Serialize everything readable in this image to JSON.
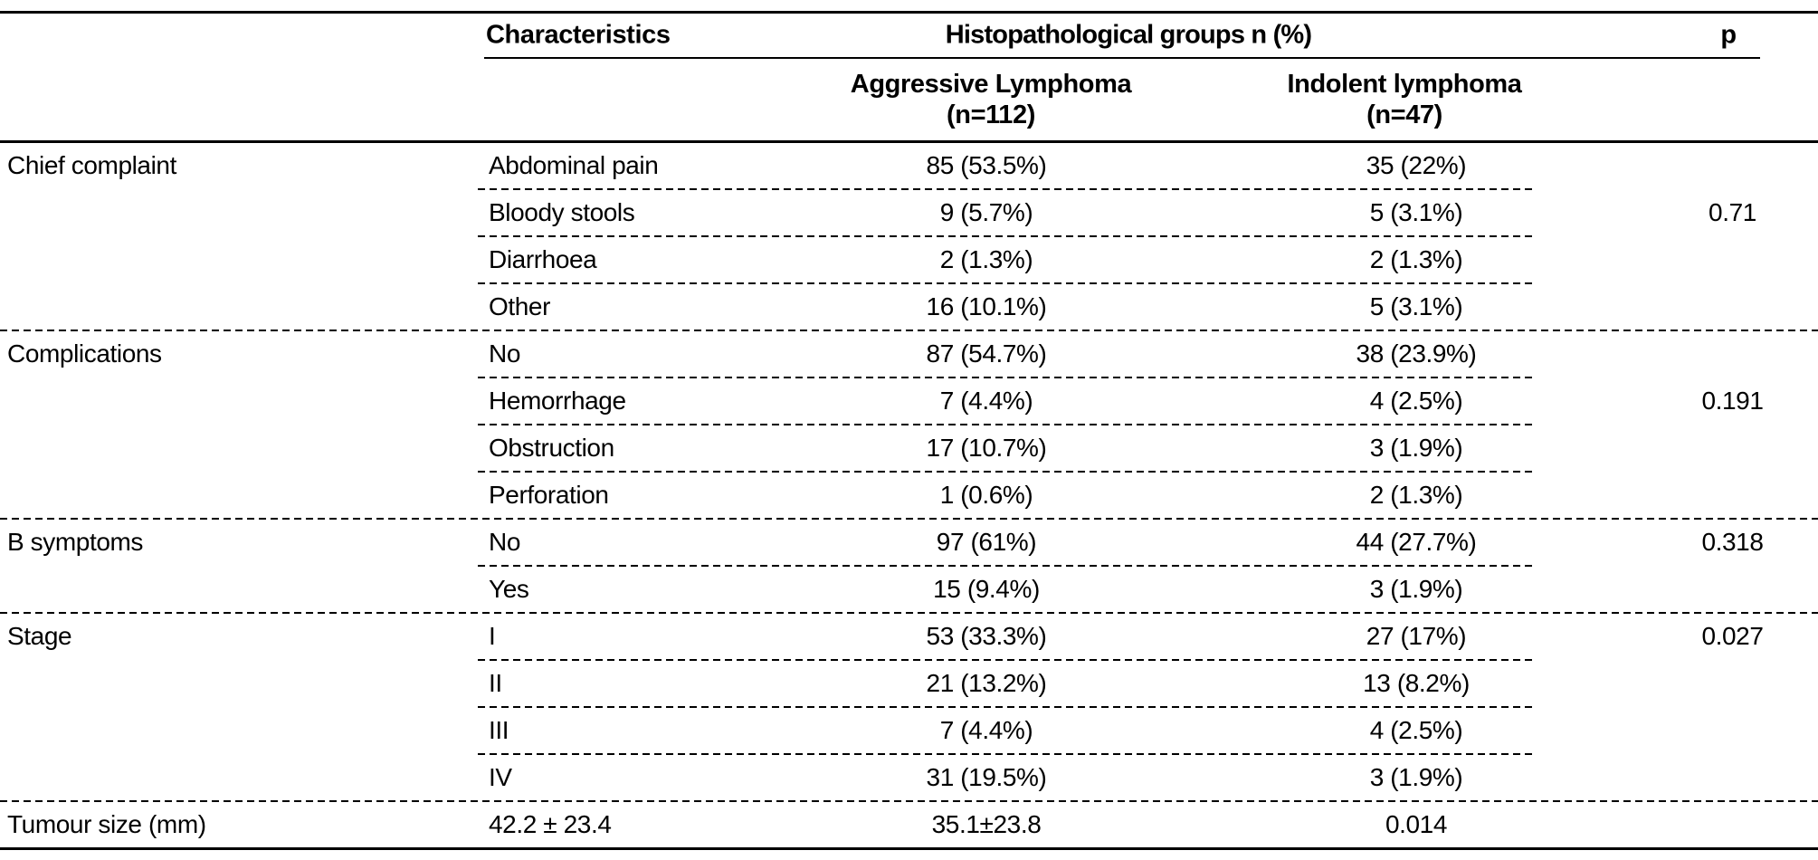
{
  "table": {
    "header": {
      "characteristics_label": "Characteristics",
      "groups_label": "Histopathological groups n (%)",
      "p_label": "p",
      "aggressive": {
        "line1": "Aggressive Lymphoma",
        "line2": "(n=112)"
      },
      "indolent": {
        "line1": "Indolent lymphoma",
        "line2": "(n=47)"
      }
    },
    "groups": [
      {
        "label": "Chief complaint",
        "rows": [
          {
            "characteristic": "Abdominal pain",
            "aggressive": "85 (53.5%)",
            "indolent": "35 (22%)",
            "p": ""
          },
          {
            "characteristic": "Bloody stools",
            "aggressive": "9 (5.7%)",
            "indolent": "5 (3.1%)",
            "p": "0.71"
          },
          {
            "characteristic": "Diarrhoea",
            "aggressive": "2 (1.3%)",
            "indolent": "2 (1.3%)",
            "p": ""
          },
          {
            "characteristic": "Other",
            "aggressive": "16 (10.1%)",
            "indolent": "5 (3.1%)",
            "p": ""
          }
        ]
      },
      {
        "label": "Complications",
        "rows": [
          {
            "characteristic": "No",
            "aggressive": "87 (54.7%)",
            "indolent": "38 (23.9%)",
            "p": ""
          },
          {
            "characteristic": "Hemorrhage",
            "aggressive": "7 (4.4%)",
            "indolent": "4 (2.5%)",
            "p": "0.191"
          },
          {
            "characteristic": "Obstruction",
            "aggressive": "17 (10.7%)",
            "indolent": "3 (1.9%)",
            "p": ""
          },
          {
            "characteristic": "Perforation",
            "aggressive": "1 (0.6%)",
            "indolent": "2 (1.3%)",
            "p": ""
          }
        ]
      },
      {
        "label": "B symptoms",
        "rows": [
          {
            "characteristic": "No",
            "aggressive": "97 (61%)",
            "indolent": "44 (27.7%)",
            "p": "0.318"
          },
          {
            "characteristic": "Yes",
            "aggressive": "15 (9.4%)",
            "indolent": "3 (1.9%)",
            "p": ""
          }
        ]
      },
      {
        "label": "Stage",
        "rows": [
          {
            "characteristic": "I",
            "aggressive": "53 (33.3%)",
            "indolent": "27 (17%)",
            "p": "0.027"
          },
          {
            "characteristic": "II",
            "aggressive": "21 (13.2%)",
            "indolent": "13 (8.2%)",
            "p": ""
          },
          {
            "characteristic": "III",
            "aggressive": "7 (4.4%)",
            "indolent": "4 (2.5%)",
            "p": ""
          },
          {
            "characteristic": "IV",
            "aggressive": "31 (19.5%)",
            "indolent": "3 (1.9%)",
            "p": ""
          }
        ]
      }
    ],
    "footer_row": {
      "label": "Tumour size (mm)",
      "characteristic": "42.2 ± 23.4",
      "aggressive": "35.1±23.8",
      "indolent": "0.014",
      "p": ""
    }
  }
}
